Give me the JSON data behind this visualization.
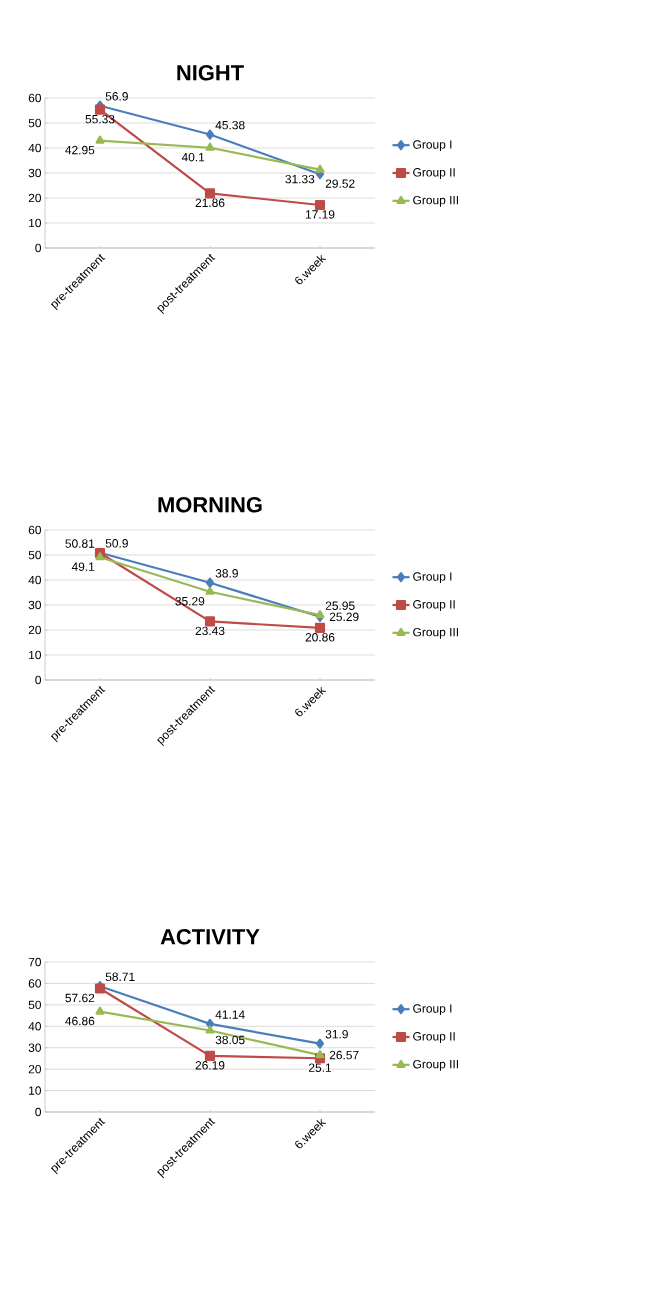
{
  "chart_data": [
    {
      "type": "line",
      "title": "NIGHT",
      "categories": [
        "pre-treatment",
        "post-treatment",
        "6.week"
      ],
      "ylim": [
        0,
        60
      ],
      "yticks": [
        0,
        10,
        20,
        30,
        40,
        50,
        60
      ],
      "grid": "y",
      "legend": "right",
      "data_labels": true,
      "series": [
        {
          "name": "Group I",
          "color": "#4a7ebb",
          "marker": "diamond",
          "values": [
            56.9,
            45.38,
            29.52
          ]
        },
        {
          "name": "Group II",
          "color": "#be4b48",
          "marker": "square",
          "values": [
            55.33,
            21.86,
            17.19
          ]
        },
        {
          "name": "Group III",
          "color": "#98b954",
          "marker": "triangle",
          "values": [
            42.95,
            40.1,
            31.33
          ]
        }
      ]
    },
    {
      "type": "line",
      "title": "MORNING",
      "categories": [
        "pre-treatment",
        "post-treatment",
        "6.week"
      ],
      "ylim": [
        0,
        60
      ],
      "yticks": [
        0,
        10,
        20,
        30,
        40,
        50,
        60
      ],
      "grid": "y",
      "legend": "right",
      "data_labels": true,
      "series": [
        {
          "name": "Group I",
          "color": "#4a7ebb",
          "marker": "diamond",
          "values": [
            50.9,
            38.9,
            25.29
          ]
        },
        {
          "name": "Group II",
          "color": "#be4b48",
          "marker": "square",
          "values": [
            50.81,
            23.43,
            20.86
          ]
        },
        {
          "name": "Group III",
          "color": "#98b954",
          "marker": "triangle",
          "values": [
            49.1,
            35.29,
            25.95
          ]
        }
      ]
    },
    {
      "type": "line",
      "title": "ACTIVITY",
      "categories": [
        "pre-treatment",
        "post-treatment",
        "6.week"
      ],
      "ylim": [
        0,
        70
      ],
      "yticks": [
        0,
        10,
        20,
        30,
        40,
        50,
        60,
        70
      ],
      "grid": "y",
      "legend": "right",
      "data_labels": true,
      "series": [
        {
          "name": "Group I",
          "color": "#4a7ebb",
          "marker": "diamond",
          "values": [
            58.71,
            41.14,
            31.9
          ]
        },
        {
          "name": "Group II",
          "color": "#be4b48",
          "marker": "square",
          "values": [
            57.62,
            26.19,
            25.1
          ]
        },
        {
          "name": "Group III",
          "color": "#98b954",
          "marker": "triangle",
          "values": [
            46.86,
            38.05,
            26.57
          ]
        }
      ]
    }
  ]
}
